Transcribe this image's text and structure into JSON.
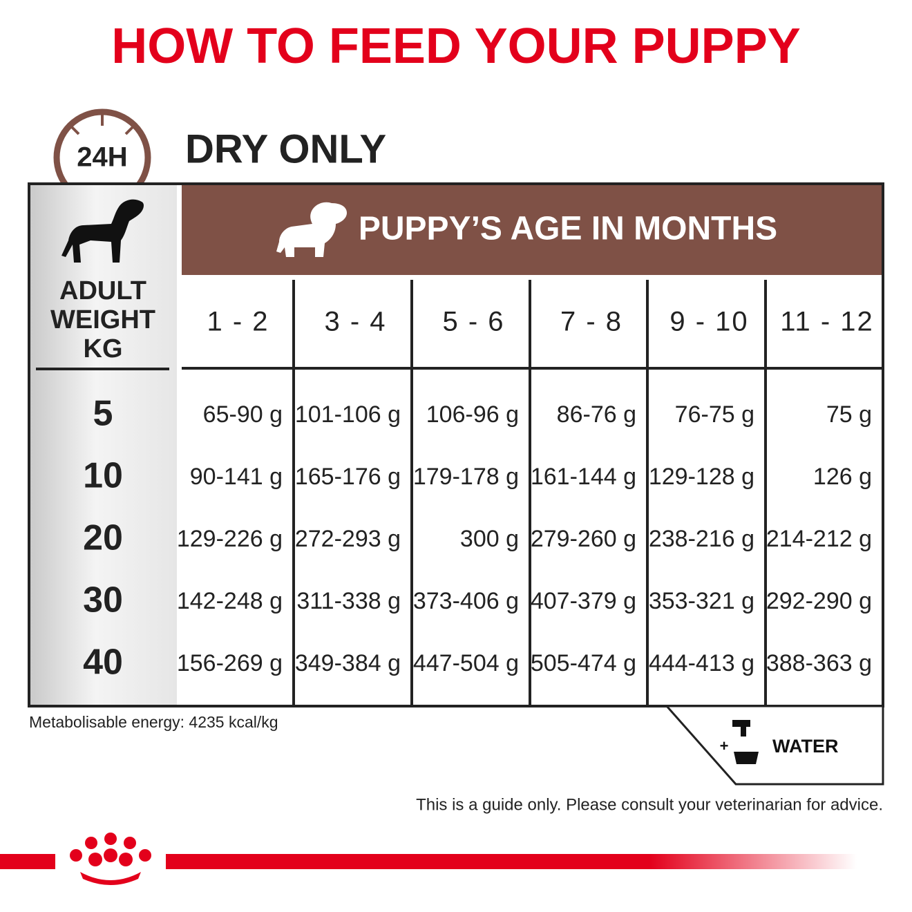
{
  "title": "HOW TO FEED YOUR PUPPY",
  "badge": "24H",
  "section_title": "DRY ONLY",
  "table": {
    "age_header": "PUPPY’S AGE IN MONTHS",
    "weight_header": [
      "ADULT",
      "WEIGHT",
      "KG"
    ],
    "columns": [
      "1 - 2",
      "3 - 4",
      "5 - 6",
      "7 - 8",
      "9 - 10",
      "11 - 12"
    ],
    "rows": [
      {
        "weight": "5",
        "cells": [
          "65-90 g",
          "101-106 g",
          "106-96 g",
          "86-76 g",
          "76-75 g",
          "75 g"
        ]
      },
      {
        "weight": "10",
        "cells": [
          "90-141 g",
          "165-176 g",
          "179-178 g",
          "161-144 g",
          "129-128 g",
          "126 g"
        ]
      },
      {
        "weight": "20",
        "cells": [
          "129-226 g",
          "272-293 g",
          "300 g",
          "279-260 g",
          "238-216 g",
          "214-212 g"
        ]
      },
      {
        "weight": "30",
        "cells": [
          "142-248 g",
          "311-338 g",
          "373-406 g",
          "407-379 g",
          "353-321 g",
          "292-290 g"
        ]
      },
      {
        "weight": "40",
        "cells": [
          "156-269 g",
          "349-384 g",
          "447-504 g",
          "505-474 g",
          "444-413 g",
          "388-363 g"
        ]
      }
    ]
  },
  "energy_note": "Metabolisable energy: 4235 kcal/kg",
  "water": {
    "symbol": "+",
    "label": "WATER"
  },
  "disclaimer": "This is a guide only. Please consult your veterinarian for advice."
}
